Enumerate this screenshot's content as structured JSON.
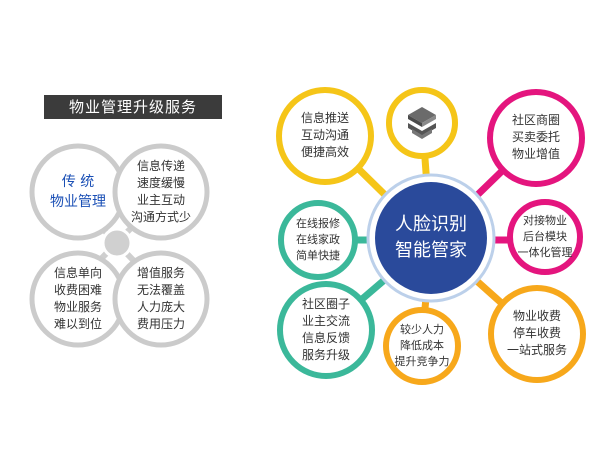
{
  "title": "物业管理升级服务",
  "left_nodes": [
    {
      "lines": [
        "传 统",
        "物业管理"
      ]
    },
    {
      "lines": [
        "信息传递",
        "速度缓慢",
        "业主互动",
        "沟通方式少"
      ]
    },
    {
      "lines": [
        "信息单向",
        "收费困难",
        "物业服务",
        "难以到位"
      ]
    },
    {
      "lines": [
        "增值服务",
        "无法覆盖",
        "人力庞大",
        "费用压力"
      ]
    }
  ],
  "center": {
    "lines": [
      "人脸识别",
      "智能管家"
    ]
  },
  "right_nodes": [
    {
      "lines": [
        "信息推送",
        "互动沟通",
        "便捷高效"
      ],
      "color": "#f5c518"
    },
    {
      "lines": [
        "社区商圈",
        "买卖委托",
        "物业增值"
      ],
      "color": "#e4157e"
    },
    {
      "lines": [
        "在线报修",
        "在线家政",
        "简单快捷"
      ],
      "color": "#3bb89a"
    },
    {
      "lines": [
        "对接物业",
        "后台模块",
        "一体化管理"
      ],
      "color": "#e4157e"
    },
    {
      "lines": [
        "社区圈子",
        "业主交流",
        "信息反馈",
        "服务升级"
      ],
      "color": "#3bb89a"
    },
    {
      "lines": [
        "较少人力",
        "降低成本",
        "提升竞争力"
      ],
      "color": "#f7a81b"
    },
    {
      "lines": [
        "物业收费",
        "停车收费",
        "一站式服务"
      ],
      "color": "#f7a81b"
    }
  ],
  "logo_icon": "stacked-layers-logo-icon",
  "colors": {
    "center": "#2a4a9b",
    "left_ring": "#c9c9c9",
    "logo_ring": "#f5c518"
  }
}
